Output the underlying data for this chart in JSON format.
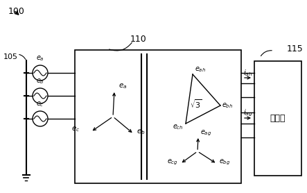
{
  "bg_color": "#ffffff",
  "line_color": "#000000",
  "label_100": "100",
  "label_105": "105",
  "label_110": "110",
  "label_115": "115",
  "output_label": "输出级",
  "fig_width": 4.43,
  "fig_height": 2.78,
  "dpi": 100
}
